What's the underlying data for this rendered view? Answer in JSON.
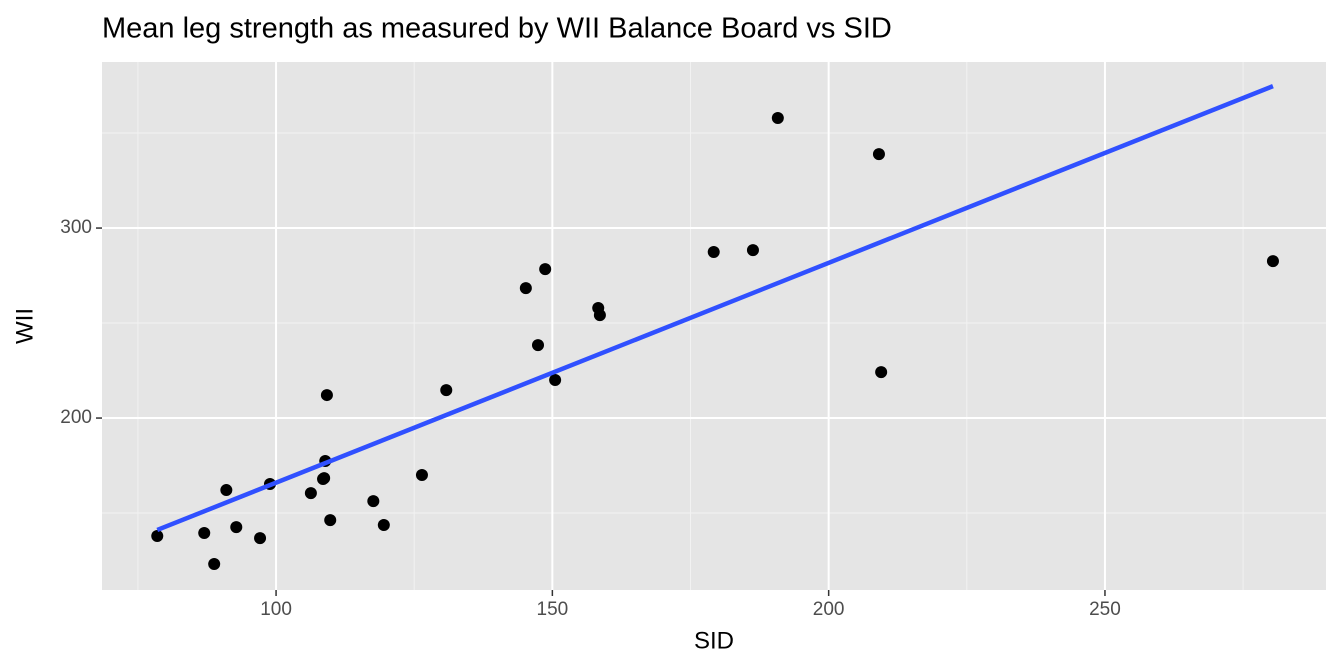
{
  "chart_data": {
    "type": "scatter",
    "title": "Mean leg strength as measured by WII Balance Board vs SID",
    "x_label": "SID",
    "y_label": "WII",
    "xlim": [
      68.5,
      290.0
    ],
    "ylim": [
      109.5,
      387.4
    ],
    "xticks": [
      100,
      150,
      200,
      250
    ],
    "yticks": [
      200,
      300
    ],
    "x_minor_ticks": [
      75,
      125,
      175,
      225,
      275
    ],
    "y_minor_ticks": [
      150,
      250,
      350
    ],
    "grid": true,
    "color": "#000000",
    "x": [
      78.5,
      87.0,
      88.8,
      91.0,
      92.8,
      97.1,
      98.9,
      106.3,
      108.5,
      108.7,
      108.9,
      109.2,
      109.8,
      117.6,
      119.5,
      126.4,
      130.8,
      145.2,
      147.4,
      148.7,
      150.5,
      158.3,
      158.6,
      179.2,
      186.3,
      190.8,
      209.1,
      209.5,
      280.4
    ],
    "values": [
      137.9,
      139.5,
      123.2,
      162.1,
      142.6,
      136.8,
      165.3,
      160.5,
      167.9,
      168.4,
      177.4,
      212.1,
      146.3,
      156.3,
      143.7,
      170.0,
      214.7,
      268.4,
      238.4,
      278.4,
      220.0,
      257.9,
      254.2,
      287.4,
      288.4,
      357.9,
      338.9,
      224.2,
      282.6
    ],
    "fit": {
      "x": [
        78.5,
        280.4
      ],
      "values": [
        141.1,
        374.7
      ],
      "color": "#3050ff"
    }
  }
}
